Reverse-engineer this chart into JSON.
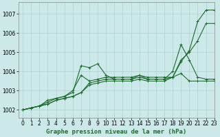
{
  "title": "Graphe pression niveau de la mer (hPa)",
  "bg_color": "#cce8e8",
  "grid_color": "#aad0d0",
  "line_color": "#1a6b2a",
  "xlim": [
    -0.5,
    23
  ],
  "ylim": [
    1001.6,
    1007.6
  ],
  "xticks": [
    0,
    1,
    2,
    3,
    4,
    5,
    6,
    7,
    8,
    9,
    10,
    11,
    12,
    13,
    14,
    15,
    16,
    17,
    18,
    19,
    20,
    21,
    22,
    23
  ],
  "yticks": [
    1002,
    1003,
    1004,
    1005,
    1006,
    1007
  ],
  "series": [
    [
      1002.0,
      1002.1,
      1002.2,
      1002.5,
      1002.6,
      1002.7,
      1003.0,
      1003.8,
      1003.5,
      1003.6,
      1003.7,
      1003.7,
      1003.7,
      1003.7,
      1003.8,
      1003.7,
      1003.7,
      1003.7,
      1003.7,
      1004.5,
      1005.1,
      1006.6,
      1007.2,
      1007.2
    ],
    [
      1002.0,
      1002.1,
      1002.2,
      1002.4,
      1002.6,
      1002.7,
      1002.9,
      1004.3,
      1004.2,
      1004.4,
      1003.8,
      1003.6,
      1003.6,
      1003.6,
      1003.8,
      1003.6,
      1003.6,
      1003.6,
      1003.7,
      1004.6,
      1005.0,
      1005.6,
      1006.5,
      1006.5
    ],
    [
      1002.0,
      1002.1,
      1002.2,
      1002.3,
      1002.5,
      1002.6,
      1002.7,
      1002.9,
      1003.4,
      1003.5,
      1003.6,
      1003.6,
      1003.6,
      1003.6,
      1003.7,
      1003.6,
      1003.6,
      1003.6,
      1004.0,
      1005.4,
      1004.6,
      1003.7,
      1003.6,
      1003.6
    ],
    [
      1002.0,
      1002.1,
      1002.2,
      1002.3,
      1002.5,
      1002.6,
      1002.7,
      1002.9,
      1003.3,
      1003.4,
      1003.5,
      1003.5,
      1003.5,
      1003.5,
      1003.6,
      1003.5,
      1003.5,
      1003.5,
      1003.7,
      1003.9,
      1003.5,
      1003.5,
      1003.5,
      1003.5
    ]
  ],
  "marker": "+",
  "marker_size": 3,
  "linewidth": 0.8,
  "tick_fontsize": 5.5,
  "xlabel_fontsize": 6.5
}
